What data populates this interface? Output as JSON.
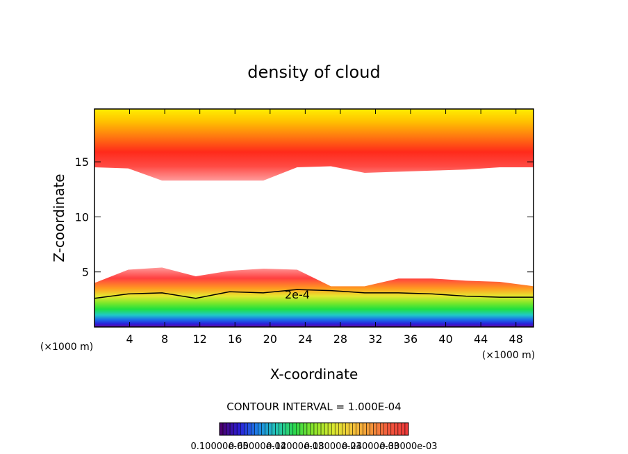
{
  "chart_data": {
    "type": "heatmap",
    "title": "density of cloud",
    "xlabel": "X-coordinate",
    "ylabel": "Z-coordinate",
    "x_unit": "(×1000 m)",
    "z_unit": "(×1000 m)",
    "xlim": [
      0,
      50
    ],
    "ylim": [
      0,
      19.8
    ],
    "x_ticks": [
      4,
      8,
      12,
      16,
      20,
      24,
      28,
      32,
      36,
      40,
      44,
      48
    ],
    "y_ticks": [
      5,
      10,
      15
    ],
    "contour_label": "2e-4",
    "contour_interval_text": "CONTOUR INTERVAL = 1.000E-04",
    "colorbar_labels": [
      "0.10000e-05",
      "0.60000e-04",
      "0.12000e-03",
      "0.18000e-03",
      "0.24000e-03",
      "0.30000e-03"
    ],
    "colorbar_colors": [
      "#4b0070",
      "#2a1fd8",
      "#1d86e8",
      "#24c8b4",
      "#2ed84a",
      "#8ee82a",
      "#d8e830",
      "#f5c83a",
      "#f59a3a",
      "#f25a3e",
      "#f03a3a"
    ],
    "layers": {
      "upper_band_top_km": 19.8,
      "upper_band_bottom_km": [
        14.5,
        14.4,
        13.3,
        13.3,
        13.3,
        13.3,
        14.5,
        14.6,
        14.0,
        14.1,
        14.2,
        14.3,
        14.5,
        14.5
      ],
      "lower_band_top_km": [
        4.0,
        5.2,
        5.4,
        4.6,
        5.1,
        5.3,
        5.2,
        3.7,
        3.7,
        4.4,
        4.4,
        4.2,
        4.1,
        3.7
      ],
      "contour_2e4_km": [
        2.6,
        3.0,
        3.1,
        2.6,
        3.2,
        3.1,
        3.4,
        3.3,
        3.1,
        3.1,
        3.0,
        2.8,
        2.7,
        2.7
      ]
    }
  }
}
